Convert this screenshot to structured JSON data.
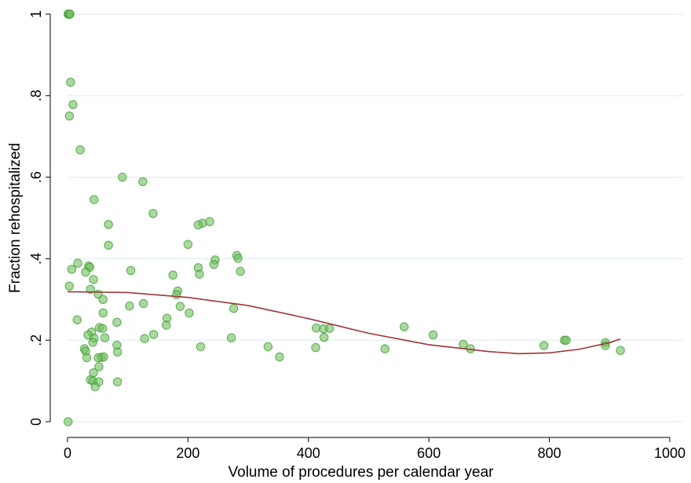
{
  "chart_data": {
    "type": "scatter",
    "title": "",
    "xlabel": "Volume of procedures per calendar year",
    "ylabel": "Fraction rehospitalized",
    "xlim": [
      0,
      1000
    ],
    "ylim": [
      0,
      1
    ],
    "xticks": [
      0,
      200,
      400,
      600,
      800,
      1000
    ],
    "xtick_labels": [
      "0",
      "200",
      "400",
      "600",
      "800",
      "1000"
    ],
    "yticks": [
      0,
      0.2,
      0.4,
      0.6,
      0.8,
      1
    ],
    "ytick_labels": [
      "0",
      ".2",
      ".4",
      ".6",
      ".8",
      "1"
    ],
    "grid": "horizontal",
    "colors": {
      "points_fill": "#6fbf5e",
      "points_stroke": "#3f9a34",
      "fit_line": "#a0343a",
      "grid": "#e3eeee",
      "axis": "#000000"
    },
    "series": [
      {
        "type": "scatter",
        "points": [
          {
            "x": 1,
            "y": 1.0
          },
          {
            "x": 2,
            "y": 1.0
          },
          {
            "x": 3,
            "y": 1.0
          },
          {
            "x": 4,
            "y": 1.0
          },
          {
            "x": 5,
            "y": 0.833
          },
          {
            "x": 9,
            "y": 0.778
          },
          {
            "x": 3,
            "y": 0.75
          },
          {
            "x": 21,
            "y": 0.667
          },
          {
            "x": 91,
            "y": 0.6
          },
          {
            "x": 125,
            "y": 0.589
          },
          {
            "x": 44,
            "y": 0.545
          },
          {
            "x": 142,
            "y": 0.511
          },
          {
            "x": 236,
            "y": 0.491
          },
          {
            "x": 224,
            "y": 0.487
          },
          {
            "x": 217,
            "y": 0.483
          },
          {
            "x": 68,
            "y": 0.484
          },
          {
            "x": 200,
            "y": 0.435
          },
          {
            "x": 68,
            "y": 0.433
          },
          {
            "x": 281,
            "y": 0.408
          },
          {
            "x": 283,
            "y": 0.401
          },
          {
            "x": 245,
            "y": 0.397
          },
          {
            "x": 243,
            "y": 0.386
          },
          {
            "x": 17,
            "y": 0.389
          },
          {
            "x": 35,
            "y": 0.382
          },
          {
            "x": 37,
            "y": 0.379
          },
          {
            "x": 217,
            "y": 0.378
          },
          {
            "x": 7,
            "y": 0.374
          },
          {
            "x": 105,
            "y": 0.371
          },
          {
            "x": 287,
            "y": 0.369
          },
          {
            "x": 30,
            "y": 0.367
          },
          {
            "x": 219,
            "y": 0.362
          },
          {
            "x": 175,
            "y": 0.36
          },
          {
            "x": 43,
            "y": 0.349
          },
          {
            "x": 3,
            "y": 0.333
          },
          {
            "x": 38,
            "y": 0.325
          },
          {
            "x": 183,
            "y": 0.321
          },
          {
            "x": 51,
            "y": 0.313
          },
          {
            "x": 181,
            "y": 0.312
          },
          {
            "x": 59,
            "y": 0.3
          },
          {
            "x": 126,
            "y": 0.29
          },
          {
            "x": 103,
            "y": 0.284
          },
          {
            "x": 187,
            "y": 0.283
          },
          {
            "x": 276,
            "y": 0.278
          },
          {
            "x": 59,
            "y": 0.267
          },
          {
            "x": 202,
            "y": 0.267
          },
          {
            "x": 165,
            "y": 0.254
          },
          {
            "x": 16,
            "y": 0.25
          },
          {
            "x": 82,
            "y": 0.244
          },
          {
            "x": 164,
            "y": 0.237
          },
          {
            "x": 53,
            "y": 0.231
          },
          {
            "x": 58,
            "y": 0.229
          },
          {
            "x": 413,
            "y": 0.23
          },
          {
            "x": 425,
            "y": 0.228
          },
          {
            "x": 435,
            "y": 0.229
          },
          {
            "x": 559,
            "y": 0.233
          },
          {
            "x": 40,
            "y": 0.22
          },
          {
            "x": 34,
            "y": 0.213
          },
          {
            "x": 143,
            "y": 0.214
          },
          {
            "x": 607,
            "y": 0.213
          },
          {
            "x": 62,
            "y": 0.206
          },
          {
            "x": 128,
            "y": 0.204
          },
          {
            "x": 272,
            "y": 0.206
          },
          {
            "x": 426,
            "y": 0.207
          },
          {
            "x": 825,
            "y": 0.2
          },
          {
            "x": 828,
            "y": 0.2
          },
          {
            "x": 44,
            "y": 0.205
          },
          {
            "x": 42,
            "y": 0.195
          },
          {
            "x": 893,
            "y": 0.194
          },
          {
            "x": 893,
            "y": 0.187
          },
          {
            "x": 791,
            "y": 0.187
          },
          {
            "x": 657,
            "y": 0.19
          },
          {
            "x": 82,
            "y": 0.188
          },
          {
            "x": 221,
            "y": 0.184
          },
          {
            "x": 333,
            "y": 0.184
          },
          {
            "x": 412,
            "y": 0.182
          },
          {
            "x": 28,
            "y": 0.179
          },
          {
            "x": 527,
            "y": 0.179
          },
          {
            "x": 669,
            "y": 0.179
          },
          {
            "x": 918,
            "y": 0.175
          },
          {
            "x": 30,
            "y": 0.173
          },
          {
            "x": 83,
            "y": 0.171
          },
          {
            "x": 56,
            "y": 0.158
          },
          {
            "x": 60,
            "y": 0.159
          },
          {
            "x": 51,
            "y": 0.157
          },
          {
            "x": 32,
            "y": 0.157
          },
          {
            "x": 352,
            "y": 0.159
          },
          {
            "x": 52,
            "y": 0.135
          },
          {
            "x": 43,
            "y": 0.12
          },
          {
            "x": 38,
            "y": 0.103
          },
          {
            "x": 42,
            "y": 0.1
          },
          {
            "x": 83,
            "y": 0.098
          },
          {
            "x": 52,
            "y": 0.098
          },
          {
            "x": 46,
            "y": 0.086
          },
          {
            "x": 1,
            "y": 0.0
          }
        ]
      },
      {
        "type": "line",
        "points": [
          {
            "x": 0,
            "y": 0.319
          },
          {
            "x": 100,
            "y": 0.317
          },
          {
            "x": 200,
            "y": 0.305
          },
          {
            "x": 300,
            "y": 0.285
          },
          {
            "x": 400,
            "y": 0.253
          },
          {
            "x": 500,
            "y": 0.217
          },
          {
            "x": 600,
            "y": 0.189
          },
          {
            "x": 700,
            "y": 0.172
          },
          {
            "x": 750,
            "y": 0.167
          },
          {
            "x": 800,
            "y": 0.169
          },
          {
            "x": 850,
            "y": 0.178
          },
          {
            "x": 900,
            "y": 0.194
          },
          {
            "x": 918,
            "y": 0.203
          }
        ]
      }
    ]
  }
}
